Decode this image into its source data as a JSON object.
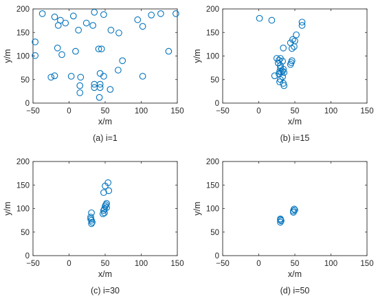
{
  "chart_data": [
    {
      "type": "scatter",
      "caption": "(a) i=1",
      "xlabel": "x/m",
      "ylabel": "y/m",
      "xlim": [
        -50,
        150
      ],
      "ylim": [
        0,
        200
      ],
      "xticks": [
        -50,
        0,
        50,
        100,
        150
      ],
      "yticks": [
        0,
        50,
        100,
        150,
        200
      ],
      "grid": false,
      "marker": "open-circle",
      "points": [
        [
          -37,
          190
        ],
        [
          -20,
          183
        ],
        [
          -12,
          176
        ],
        [
          -5,
          170
        ],
        [
          -15,
          165
        ],
        [
          6,
          185
        ],
        [
          24,
          170
        ],
        [
          35,
          193
        ],
        [
          48,
          188
        ],
        [
          13,
          155
        ],
        [
          33,
          165
        ],
        [
          58,
          155
        ],
        [
          69,
          149
        ],
        [
          95,
          177
        ],
        [
          114,
          187
        ],
        [
          127,
          190
        ],
        [
          148,
          190
        ],
        [
          102,
          163
        ],
        [
          -47,
          130
        ],
        [
          -47,
          101
        ],
        [
          -16,
          117
        ],
        [
          -10,
          103
        ],
        [
          9,
          110
        ],
        [
          41,
          115
        ],
        [
          45,
          115
        ],
        [
          138,
          110
        ],
        [
          74,
          90
        ],
        [
          -25,
          55
        ],
        [
          -20,
          58
        ],
        [
          3,
          57
        ],
        [
          16,
          55
        ],
        [
          15,
          37
        ],
        [
          15,
          22
        ],
        [
          35,
          40
        ],
        [
          35,
          33
        ],
        [
          43,
          40
        ],
        [
          43,
          33
        ],
        [
          43,
          63
        ],
        [
          48,
          57
        ],
        [
          57,
          29
        ],
        [
          68,
          70
        ],
        [
          102,
          57
        ],
        [
          42,
          12
        ]
      ]
    },
    {
      "type": "scatter",
      "caption": "(b) i=15",
      "xlabel": "x/m",
      "ylabel": "y/m",
      "xlim": [
        -50,
        150
      ],
      "ylim": [
        0,
        200
      ],
      "xticks": [
        -50,
        0,
        50,
        100,
        150
      ],
      "yticks": [
        0,
        50,
        100,
        150,
        200
      ],
      "grid": false,
      "marker": "open-circle",
      "points": [
        [
          1,
          180
        ],
        [
          18,
          176
        ],
        [
          60,
          172
        ],
        [
          60,
          165
        ],
        [
          52,
          145
        ],
        [
          47,
          135
        ],
        [
          50,
          132
        ],
        [
          44,
          128
        ],
        [
          49,
          120
        ],
        [
          46,
          116
        ],
        [
          34,
          117
        ],
        [
          25,
          95
        ],
        [
          30,
          95
        ],
        [
          28,
          91
        ],
        [
          33,
          89
        ],
        [
          27,
          85
        ],
        [
          46,
          90
        ],
        [
          45,
          86
        ],
        [
          44,
          82
        ],
        [
          30,
          80
        ],
        [
          30,
          75
        ],
        [
          34,
          72
        ],
        [
          33,
          68
        ],
        [
          29,
          67
        ],
        [
          31,
          66
        ],
        [
          35,
          65
        ],
        [
          28,
          62
        ],
        [
          22,
          58
        ],
        [
          33,
          56
        ],
        [
          30,
          50
        ],
        [
          29,
          45
        ],
        [
          34,
          42
        ],
        [
          35,
          37
        ]
      ]
    },
    {
      "type": "scatter",
      "caption": "(c) i=30",
      "xlabel": "x/m",
      "ylabel": "y/m",
      "xlim": [
        -50,
        150
      ],
      "ylim": [
        0,
        200
      ],
      "xticks": [
        -50,
        0,
        50,
        100,
        150
      ],
      "yticks": [
        0,
        50,
        100,
        150,
        200
      ],
      "grid": false,
      "marker": "open-circle",
      "points": [
        [
          54,
          155
        ],
        [
          50,
          148
        ],
        [
          55,
          138
        ],
        [
          48,
          134
        ],
        [
          52,
          111
        ],
        [
          51,
          108
        ],
        [
          50,
          105
        ],
        [
          52,
          102
        ],
        [
          49,
          99
        ],
        [
          48,
          96
        ],
        [
          49,
          91
        ],
        [
          47,
          89
        ],
        [
          31,
          91
        ],
        [
          30,
          82
        ],
        [
          30,
          78
        ],
        [
          31,
          75
        ],
        [
          32,
          71
        ],
        [
          31,
          68
        ]
      ]
    },
    {
      "type": "scatter",
      "caption": "(d) i=50",
      "xlabel": "x/m",
      "ylabel": "y/m",
      "xlim": [
        -50,
        150
      ],
      "ylim": [
        0,
        200
      ],
      "xticks": [
        -50,
        0,
        50,
        100,
        150
      ],
      "yticks": [
        0,
        50,
        100,
        150,
        200
      ],
      "grid": false,
      "marker": "open-circle",
      "points": [
        [
          49,
          99
        ],
        [
          50,
          97
        ],
        [
          48,
          95
        ],
        [
          48,
          92
        ],
        [
          30,
          78
        ],
        [
          30,
          76
        ],
        [
          31,
          74
        ],
        [
          30,
          71
        ]
      ]
    }
  ],
  "colors": {
    "marker": "#0072bd",
    "axis": "#262626"
  }
}
